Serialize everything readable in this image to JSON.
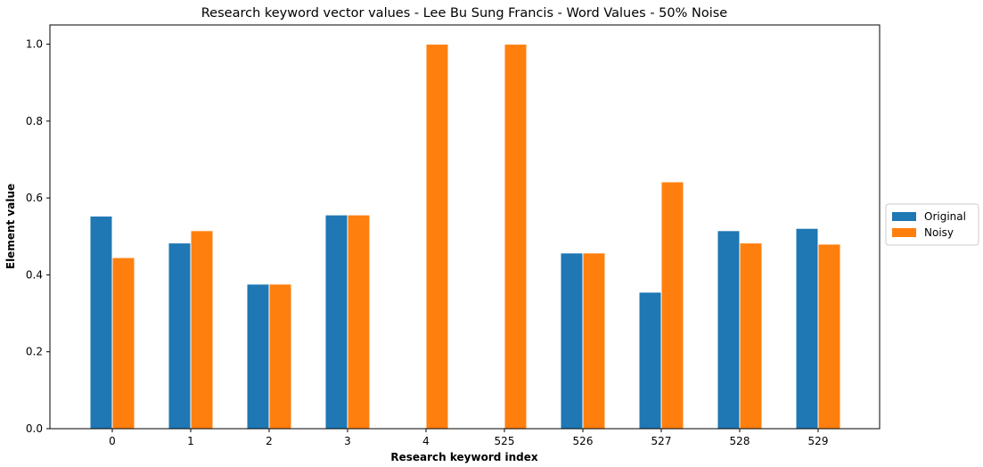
{
  "chart_data": {
    "type": "bar",
    "title": "Research keyword vector values - Lee Bu Sung Francis - Word Values - 50% Noise",
    "xlabel": "Research keyword index",
    "ylabel": "Element value",
    "categories": [
      "0",
      "1",
      "2",
      "3",
      "4",
      "525",
      "526",
      "527",
      "528",
      "529"
    ],
    "ylim": [
      0,
      1.05
    ],
    "yticks": [
      "0.0",
      "0.2",
      "0.4",
      "0.6",
      "0.8",
      "1.0"
    ],
    "grid": false,
    "legend_position": "right",
    "series": [
      {
        "name": "Original",
        "color": "#1f77b4",
        "values": [
          0.553,
          0.483,
          0.376,
          0.556,
          0.0,
          0.0,
          0.457,
          0.355,
          0.515,
          0.521
        ]
      },
      {
        "name": "Noisy",
        "color": "#ff7f0e",
        "values": [
          0.445,
          0.515,
          0.376,
          0.556,
          1.0,
          1.0,
          0.457,
          0.642,
          0.483,
          0.48
        ]
      }
    ]
  }
}
